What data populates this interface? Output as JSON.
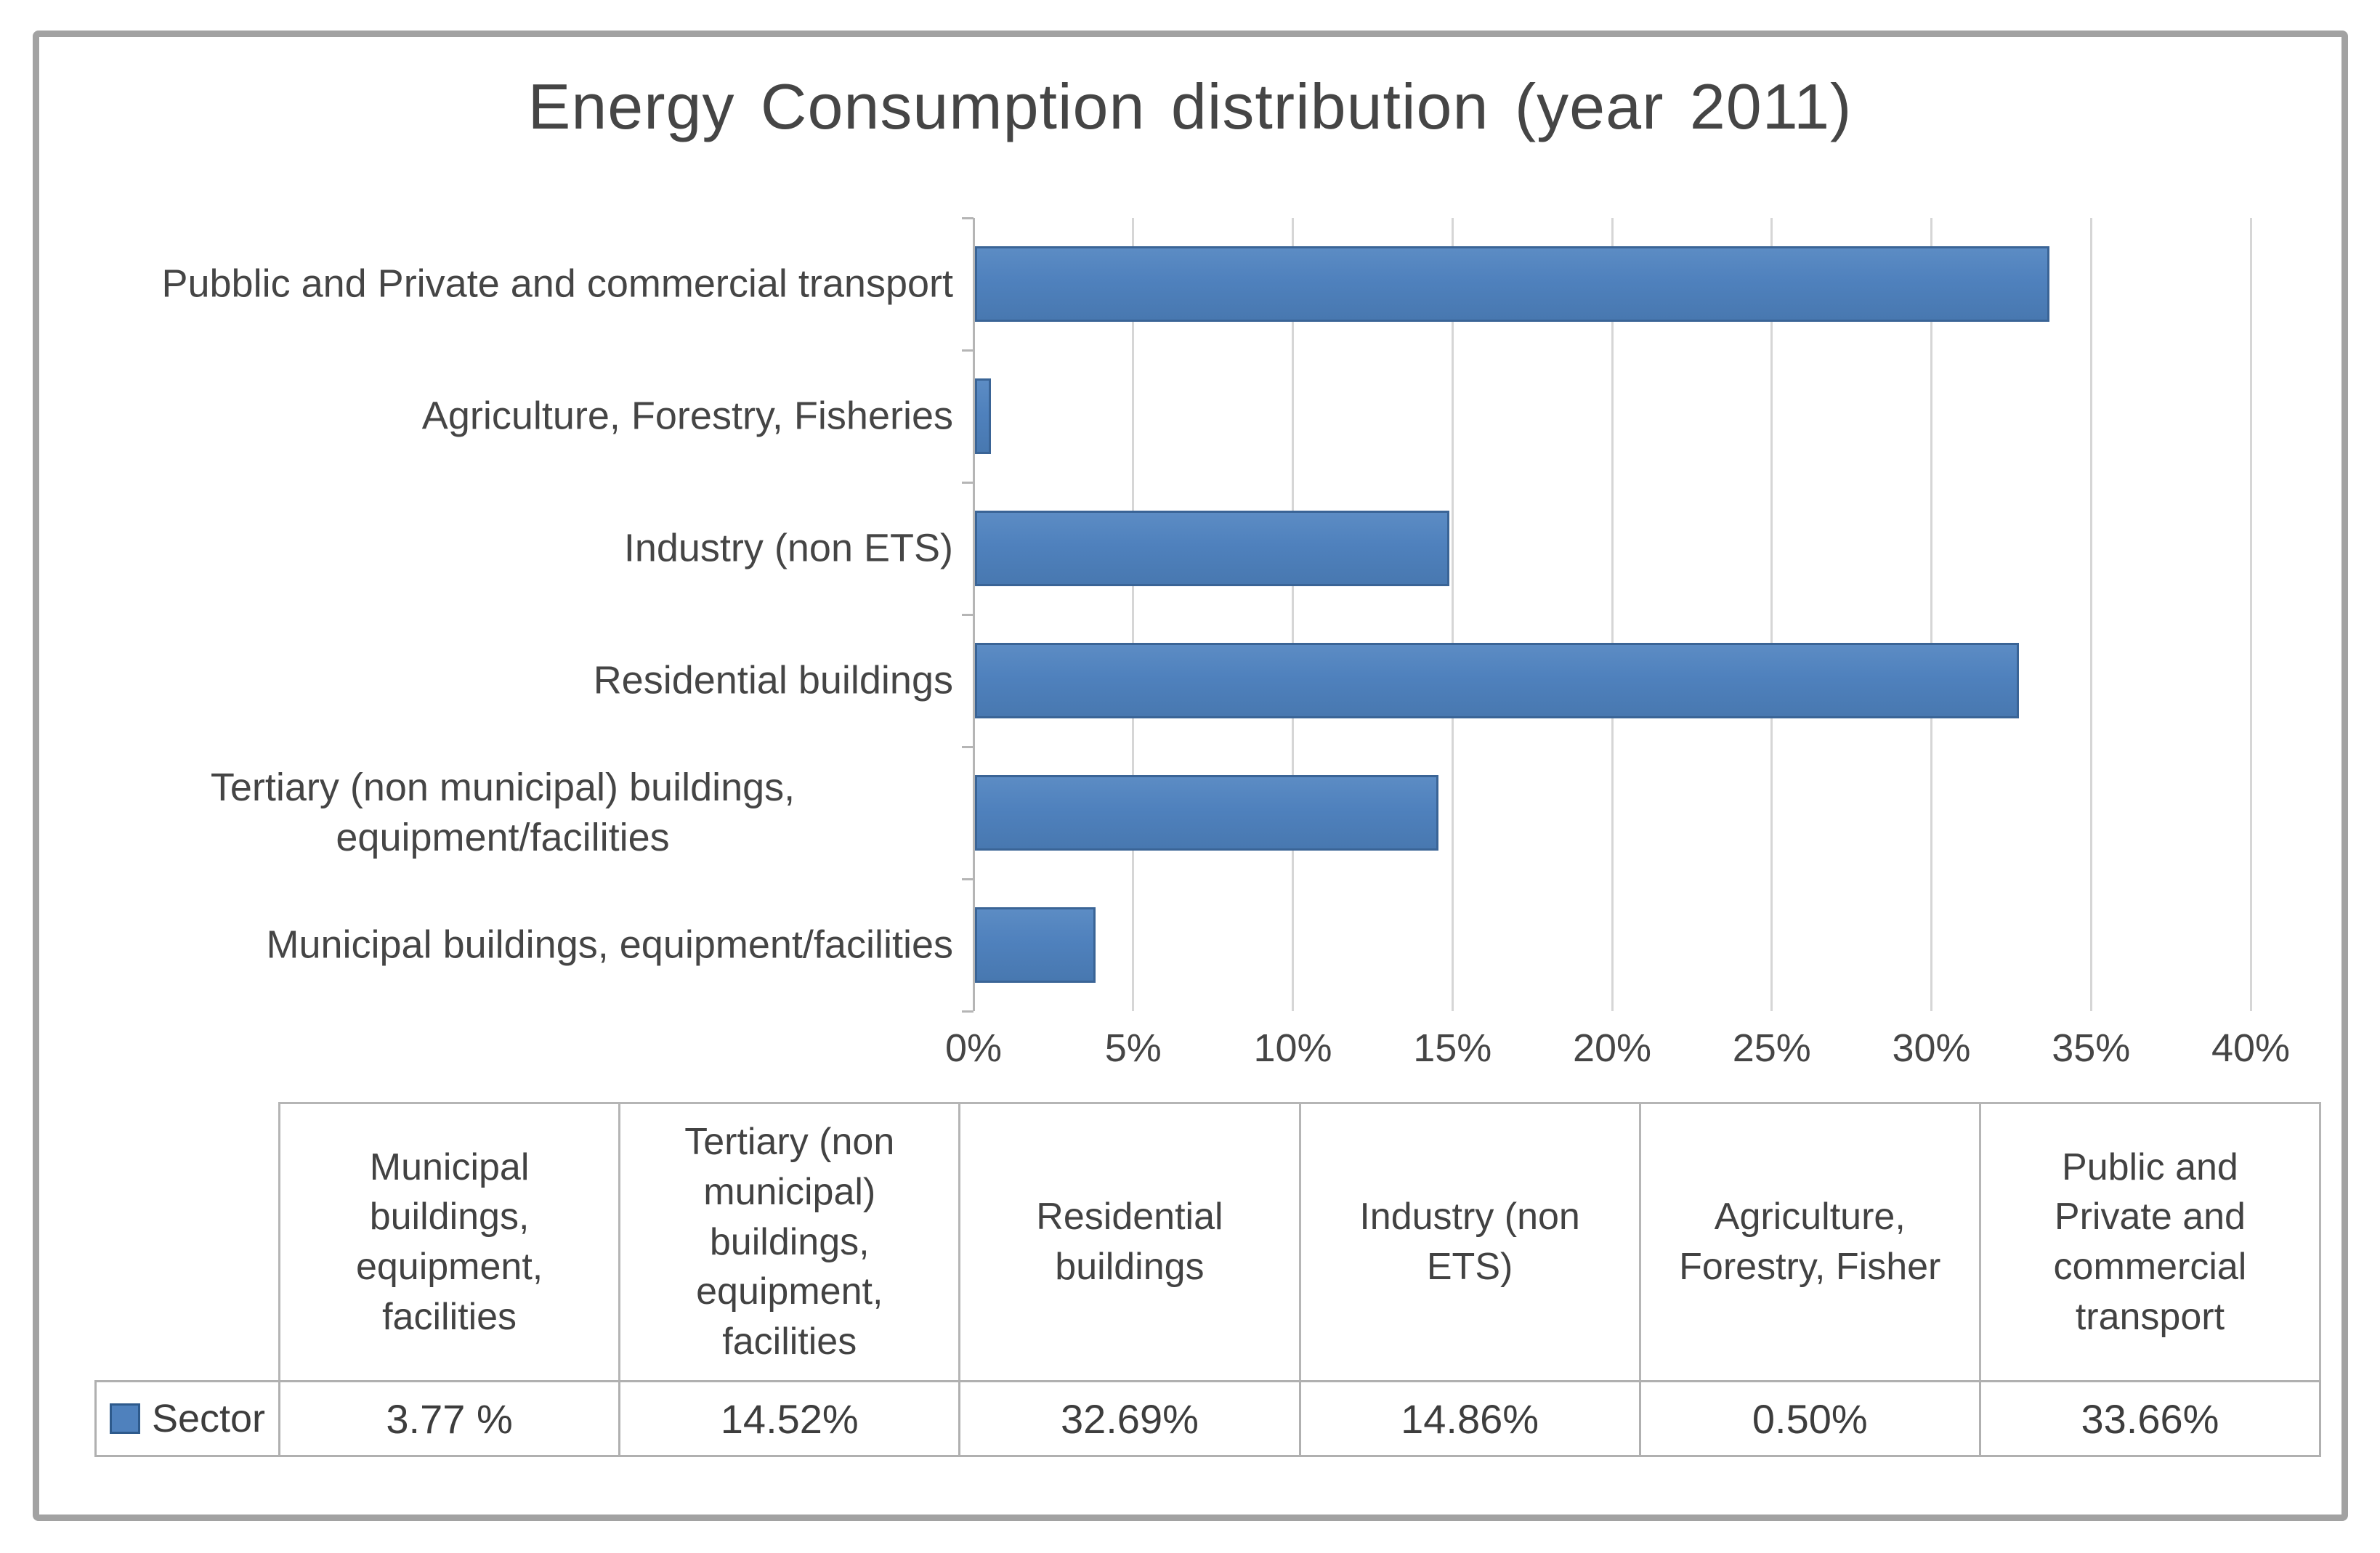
{
  "chart_data": {
    "type": "bar",
    "orientation": "horizontal",
    "title": "Energy Consumption distribution (year 2011)",
    "series_name": "Sector",
    "categories": [
      "Pubblic and Private and commercial transport",
      "Agriculture, Forestry, Fisheries",
      "Industry (non ETS)",
      "Residential buildings",
      "Tertiary (non municipal) buildings, equipment/facilities",
      "Municipal buildings, equipment/facilities"
    ],
    "values": [
      33.66,
      0.5,
      14.86,
      32.69,
      14.52,
      3.77
    ],
    "xlim": [
      0,
      40
    ],
    "x_ticks": [
      "0%",
      "5%",
      "10%",
      "15%",
      "20%",
      "25%",
      "30%",
      "35%",
      "40%"
    ],
    "grid": "vertical-gridlines-on",
    "legend_position": "data-table-left",
    "bar_color": "#4f81bd",
    "bar_border_color": "#3a6496",
    "gridline_color": "#d6d6d6",
    "axis_line_color": "#b5b5b5"
  },
  "table": {
    "legend_label": "Sector",
    "legend_marker_color": "#4f81bd",
    "columns": [
      "Municipal buildings, equipment, facilities",
      "Tertiary (non municipal) buildings, equipment, facilities",
      "Residential buildings",
      "Industry (non ETS)",
      "Agriculture, Forestry, Fisher",
      "Public and Private and commercial transport"
    ],
    "values": [
      "3.77 %",
      "14.52%",
      "32.69%",
      "14.86%",
      "0.50%",
      "33.66%"
    ]
  }
}
